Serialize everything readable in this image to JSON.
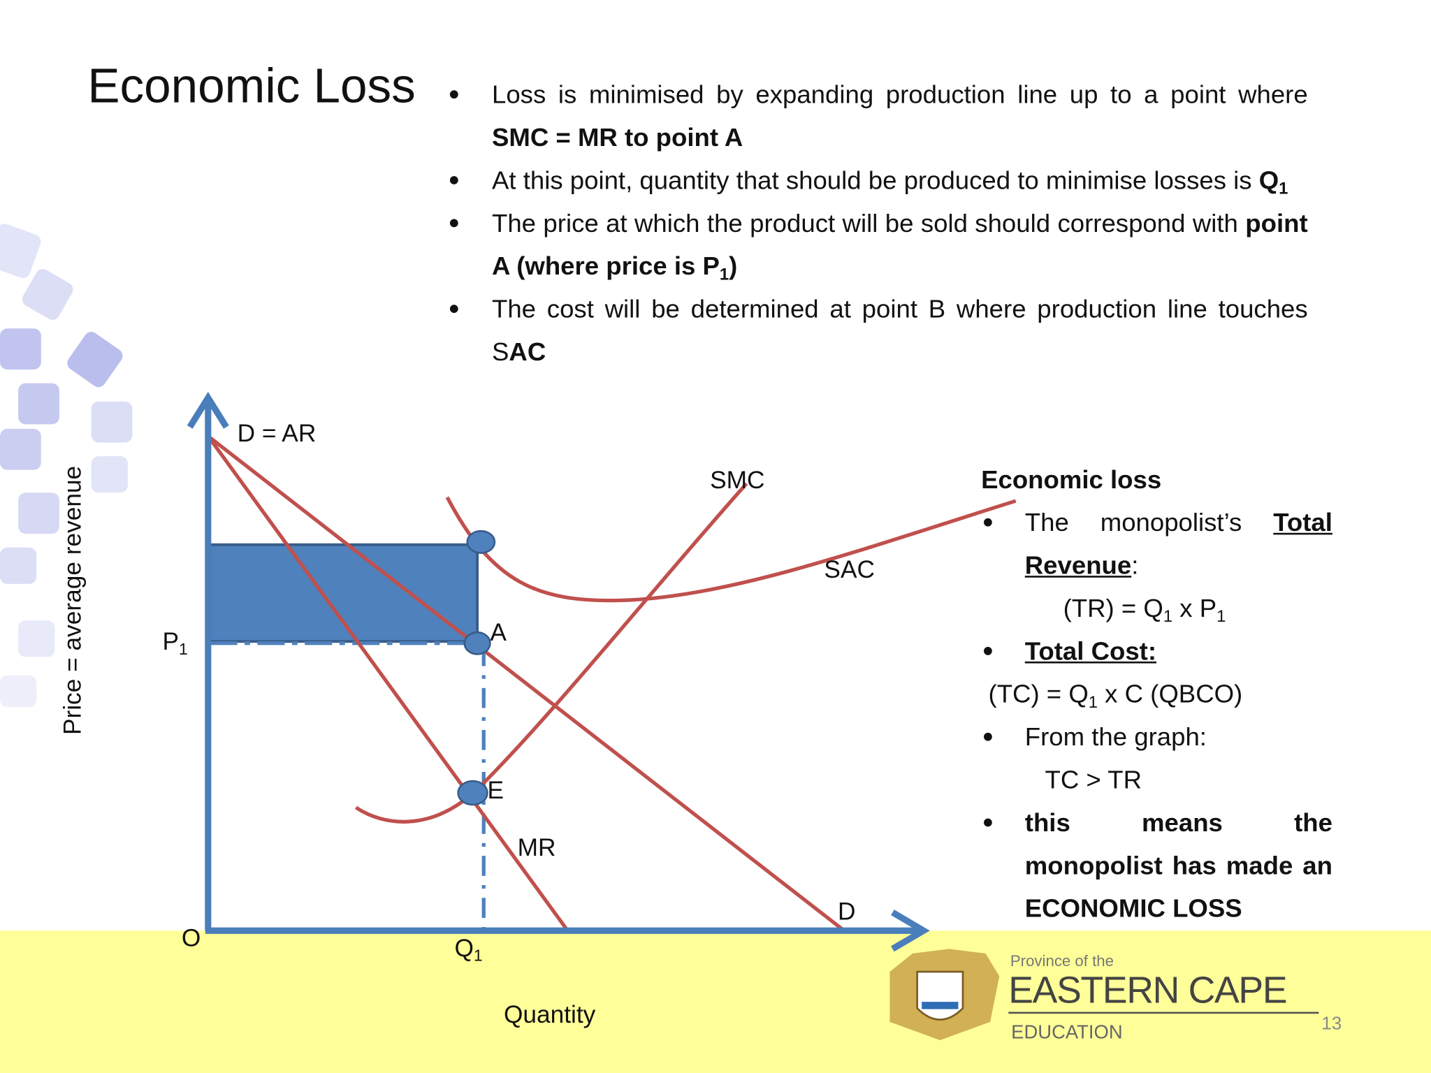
{
  "title": "Economic Loss",
  "bullets": [
    [
      {
        "text": "Loss is minimised by expanding production line up to a point where "
      },
      {
        "text": "SMC = MR  to point A",
        "bold": true
      }
    ],
    [
      {
        "text": "At this point, quantity that should be produced to minimise losses is "
      },
      {
        "text": "Q",
        "bold": true
      },
      {
        "text": "1",
        "bold": true,
        "sub": true
      }
    ],
    [
      {
        "text": "The price at which the product will be sold should correspond with "
      },
      {
        "text": "point A (where price is P",
        "bold": true
      },
      {
        "text": "1",
        "bold": true,
        "sub": true
      },
      {
        "text": ")",
        "bold": true
      }
    ],
    [
      {
        "text": "The cost will be determined at point B where production line touches  S"
      },
      {
        "text": "AC",
        "bold": true
      }
    ]
  ],
  "diagram": {
    "y_axis_label": "Price = average revenue",
    "x_axis_label": "Quantity",
    "origin": "O",
    "demand_label": "D = AR",
    "smc_label": "SMC",
    "sac_label": "SAC",
    "point_a": "A",
    "point_e": "E",
    "mr_label": "MR",
    "demand_end_label": "D",
    "price_label": [
      {
        "text": "P"
      },
      {
        "text": "1",
        "sub": true
      }
    ],
    "quantity_label": [
      {
        "text": "Q"
      },
      {
        "text": "1",
        "sub": true
      }
    ]
  },
  "panel": {
    "heading": "Economic loss",
    "lines": [
      {
        "bullet": true,
        "segments": [
          {
            "text": "The monopolist’s "
          },
          {
            "text": "Total Revenue",
            "bold": true,
            "underline": true
          },
          {
            "text": ":"
          }
        ]
      },
      {
        "bullet": false,
        "segments": [
          {
            "text": "(TR) = Q"
          },
          {
            "text": "1",
            "sub": true
          },
          {
            "text": " x P"
          },
          {
            "text": "1",
            "sub": true
          }
        ]
      },
      {
        "bullet": true,
        "segments": [
          {
            "text": "Total Cost:",
            "bold": true,
            "underline": true
          }
        ]
      },
      {
        "bullet": false,
        "segments": [
          {
            "text": "(TC) = Q"
          },
          {
            "text": "1",
            "sub": true
          },
          {
            "text": " x C (QBCO)"
          }
        ]
      },
      {
        "bullet": true,
        "segments": [
          {
            "text": "From the graph:"
          }
        ]
      },
      {
        "bullet": false,
        "segments": [
          {
            "text": "TC > TR"
          }
        ]
      },
      {
        "bullet": true,
        "segments": [
          {
            "text": "this means the monopolist has made an ECONOMIC LOSS",
            "bold": true
          }
        ]
      }
    ]
  },
  "logo": {
    "province": "Province of the",
    "name": "EASTERN CAPE",
    "department": "EDUCATION"
  },
  "page_number": "13"
}
